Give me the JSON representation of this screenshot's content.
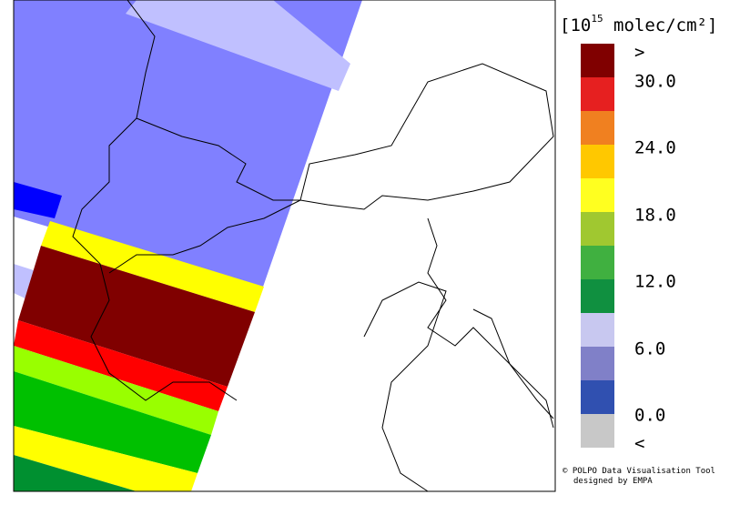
{
  "legend": {
    "unit": {
      "prefix": "[10",
      "exponent": "15",
      "suffix": " molec/cm²]"
    },
    "labels": [
      ">",
      "30.0",
      "24.0",
      "18.0",
      "12.0",
      "6.0",
      "0.0",
      "<"
    ]
  },
  "credit": {
    "line1": "© POLPO Data Visualisation Tool",
    "line2": "designed by EMPA"
  }
}
